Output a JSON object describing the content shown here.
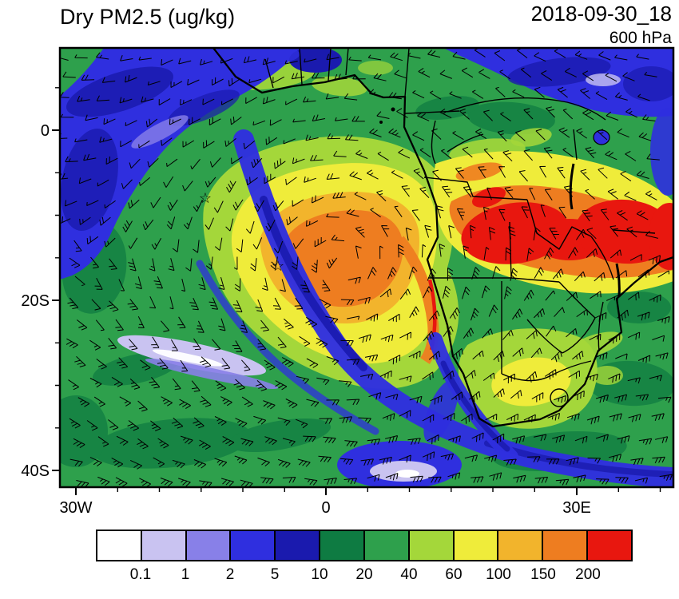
{
  "header": {
    "title": "Dry PM2.5 (ug/kg)",
    "datetime": "2018-09-30_18",
    "level": "600 hPa"
  },
  "axes": {
    "y_tick_labels": [
      "0",
      "20S",
      "40S"
    ],
    "x_tick_labels": [
      "30W",
      "0",
      "30E"
    ]
  },
  "colorbar": {
    "labels": [
      "0.1",
      "1",
      "2",
      "5",
      "10",
      "20",
      "40",
      "60",
      "100",
      "150",
      "200"
    ],
    "colors": [
      "#FFFFFF",
      "#C9C3F1",
      "#8880E8",
      "#2F2FDF",
      "#1A1AAE",
      "#0E7B42",
      "#2EA04C",
      "#A4D73A",
      "#EFEC3A",
      "#F2B42C",
      "#EE7D20",
      "#E8170F"
    ]
  },
  "chart_data": {
    "type": "heatmap",
    "title": "Dry PM2.5 (ug/kg)",
    "variable": "Dry PM2.5",
    "units": "ug/kg",
    "timestamp": "2018-09-30_18",
    "pressure_level": "600 hPa",
    "region": "South Atlantic Ocean and southern Africa",
    "lon_tick_labels": [
      "30W",
      "0",
      "30E"
    ],
    "lat_tick_labels": [
      "0",
      "20S",
      "40S"
    ],
    "approx_extent": {
      "west": "32W",
      "east": "41E",
      "north": "10N",
      "south": "42S"
    },
    "colorbar_levels": [
      0.1,
      1,
      2,
      5,
      10,
      20,
      40,
      60,
      100,
      150,
      200
    ],
    "colorbar_colors": [
      "#FFFFFF",
      "#C9C3F1",
      "#8880E8",
      "#2F2FDF",
      "#1A1AAE",
      "#0E7B42",
      "#2EA04C",
      "#A4D73A",
      "#EFEC3A",
      "#F2B42C",
      "#EE7D20",
      "#E8170F"
    ],
    "overlays": [
      "wind barbs",
      "coastlines",
      "country borders",
      "star markers"
    ],
    "features": [
      {
        "value_range": "> 200 (red)",
        "where": "Congo Basin / Angola-DRC region, extending east to the domain edge near 8-15S"
      },
      {
        "value_range": "100-200 (orange/gold)",
        "where": "biomass-burning plume core over the southeast Atlantic, roughly 5W-12E and 8-22S, plus band surrounding the red maximum over land"
      },
      {
        "value_range": "40-100 (yellow, yellow-green)",
        "where": "broad plume halo offshore of Angola/Namibia and patches over interior southern Africa"
      },
      {
        "value_range": "10-40 (greens)",
        "where": "background values over most of the Atlantic and Africa"
      },
      {
        "value_range": "< 10 (blues, lavender, white)",
        "where": "clean bands: northwest corner, curved band from the central Atlantic to the southeast corner, off the Cape coast, and along the northeast edge"
      }
    ],
    "markers": [
      {
        "symbol": "star",
        "approx_position": "14W, 8S"
      },
      {
        "symbol": "star",
        "approx_position": "6W, 16S"
      }
    ]
  }
}
